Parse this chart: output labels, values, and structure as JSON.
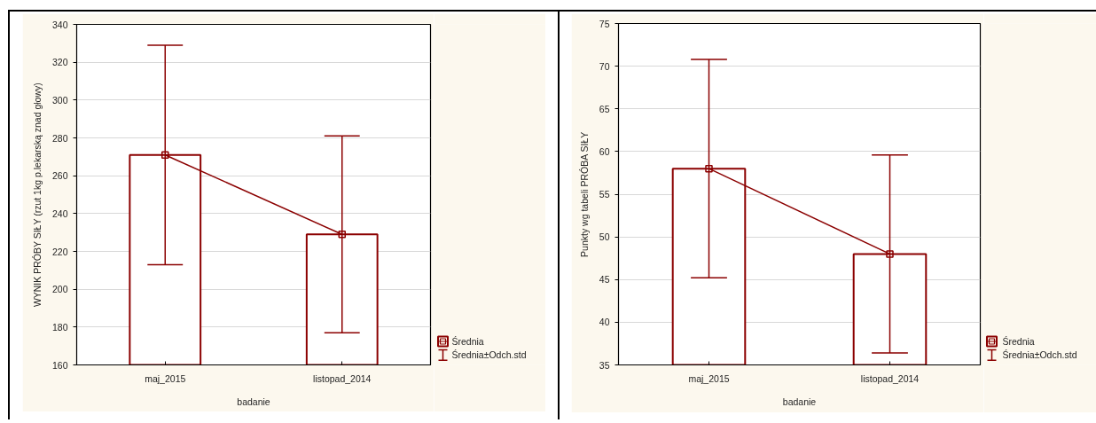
{
  "chart_data": [
    {
      "type": "bar",
      "categories": [
        "maj_2015",
        "listopad_2014"
      ],
      "xlabel": "badanie",
      "ylabel": "WYNIK PRÓBY SIŁY (rzut 1kg p.lekarską znad głowy)",
      "ylim": [
        160,
        340
      ],
      "yticks": [
        160,
        180,
        200,
        220,
        240,
        260,
        280,
        300,
        320,
        340
      ],
      "grid": "y",
      "legend": "bottom right",
      "series": [
        {
          "type": "line",
          "name": "Średnia",
          "color": "#8b0000",
          "values": [
            271,
            229
          ],
          "marker": "square"
        },
        {
          "name": "Średnia±Odch.std",
          "color": "#8b0000",
          "values": [
            271,
            229
          ],
          "errors": [
            58,
            52
          ]
        }
      ]
    },
    {
      "type": "bar",
      "categories": [
        "maj_2015",
        "listopad_2014"
      ],
      "xlabel": "badanie",
      "ylabel": "Punkty wg tabeli PRÓBA SIŁY",
      "ylim": [
        35,
        75
      ],
      "yticks": [
        35,
        40,
        45,
        50,
        55,
        60,
        65,
        70,
        75
      ],
      "grid": "y",
      "legend": "bottom right",
      "series": [
        {
          "type": "line",
          "name": "Średnia",
          "color": "#8b0000",
          "values": [
            58,
            48
          ],
          "marker": "square"
        },
        {
          "name": "Średnia±Odch.std",
          "color": "#8b0000",
          "values": [
            58,
            48
          ],
          "errors": [
            12.8,
            11.6
          ]
        }
      ]
    }
  ]
}
